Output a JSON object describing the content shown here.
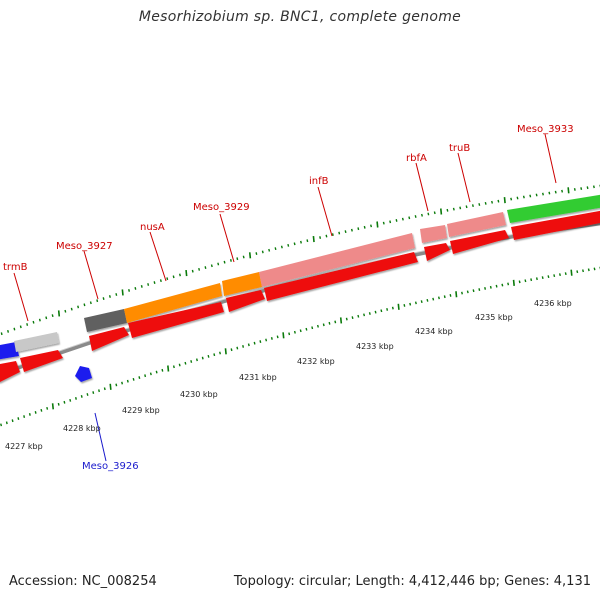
{
  "title": "Mesorhizobium sp. BNC1, complete genome",
  "accession_text": "Accession: NC_008254",
  "summary_text": "Topology: circular; Length: 4,412,446 bp; Genes: 4,131",
  "colors": {
    "backbone": "#8a8a8a",
    "tick": "#0a7a0a",
    "tick_label": "#222222",
    "gene_label_plus": "#cc0000",
    "gene_label_minus": "#1a1acc",
    "cds_red": "#ee1111",
    "orange": "#ff8c00",
    "pink": "#ee8a8a",
    "green": "#33cc33",
    "grey": "#bbbbbb",
    "dark_grey": "#555555",
    "blue": "#1a1aee"
  },
  "scale_labels": [
    "4227 kbp",
    "4228 kbp",
    "4229 kbp",
    "4230 kbp",
    "4231 kbp",
    "4232 kbp",
    "4233 kbp",
    "4234 kbp",
    "4235 kbp",
    "4236 kbp"
  ],
  "gene_labels": [
    "trmB",
    "Meso_3927",
    "nusA",
    "Meso_3929",
    "infB",
    "rbfA",
    "truB",
    "Meso_3933",
    "Meso_3926"
  ]
}
